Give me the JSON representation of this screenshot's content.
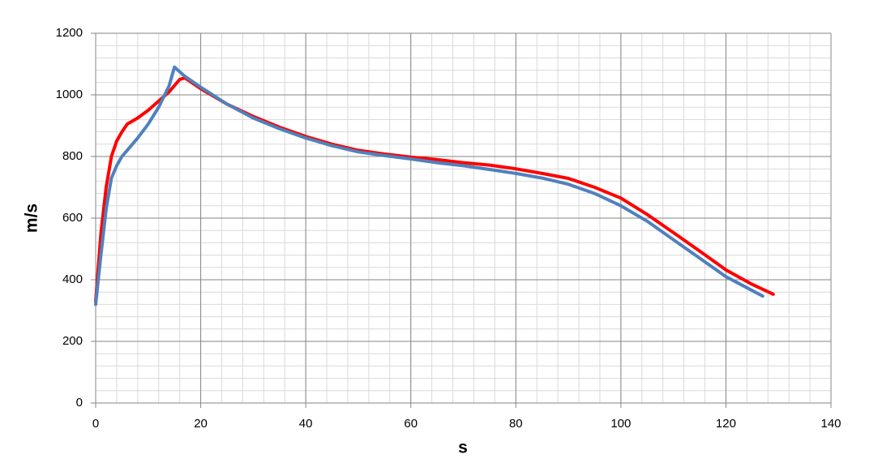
{
  "chart_data": {
    "type": "line",
    "x_label": "s",
    "y_label": "m/s",
    "series": [
      {
        "color": "#ff0000",
        "x": [
          0,
          1,
          2,
          3,
          4,
          5,
          6,
          8,
          10,
          12,
          14,
          16,
          17,
          20,
          25,
          30,
          35,
          40,
          45,
          50,
          55,
          60,
          65,
          70,
          75,
          80,
          85,
          90,
          95,
          100,
          105,
          110,
          115,
          120,
          125,
          129
        ],
        "values": [
          330,
          550,
          700,
          800,
          850,
          880,
          905,
          925,
          950,
          980,
          1010,
          1050,
          1055,
          1020,
          970,
          930,
          895,
          865,
          840,
          820,
          808,
          798,
          790,
          780,
          772,
          760,
          745,
          729,
          700,
          665,
          612,
          553,
          493,
          432,
          385,
          353
        ]
      },
      {
        "color": "#4f81bd",
        "x": [
          0,
          1,
          2,
          3,
          4,
          5,
          6,
          8,
          10,
          12,
          14,
          15,
          17,
          20,
          25,
          30,
          35,
          40,
          45,
          50,
          55,
          60,
          65,
          70,
          75,
          80,
          85,
          90,
          95,
          100,
          105,
          110,
          115,
          120,
          125,
          127
        ],
        "values": [
          320,
          480,
          630,
          730,
          770,
          800,
          820,
          860,
          905,
          960,
          1030,
          1090,
          1060,
          1025,
          970,
          925,
          890,
          860,
          835,
          815,
          803,
          792,
          780,
          770,
          758,
          745,
          730,
          710,
          680,
          640,
          590,
          530,
          470,
          410,
          365,
          347
        ]
      }
    ],
    "xlim": [
      0,
      140
    ],
    "xticks": [
      0,
      20,
      40,
      60,
      80,
      100,
      120,
      140
    ],
    "ylim": [
      0,
      1200
    ],
    "yticks": [
      0,
      200,
      400,
      600,
      800,
      1000,
      1200
    ],
    "grid": true,
    "minor_grid": true
  }
}
